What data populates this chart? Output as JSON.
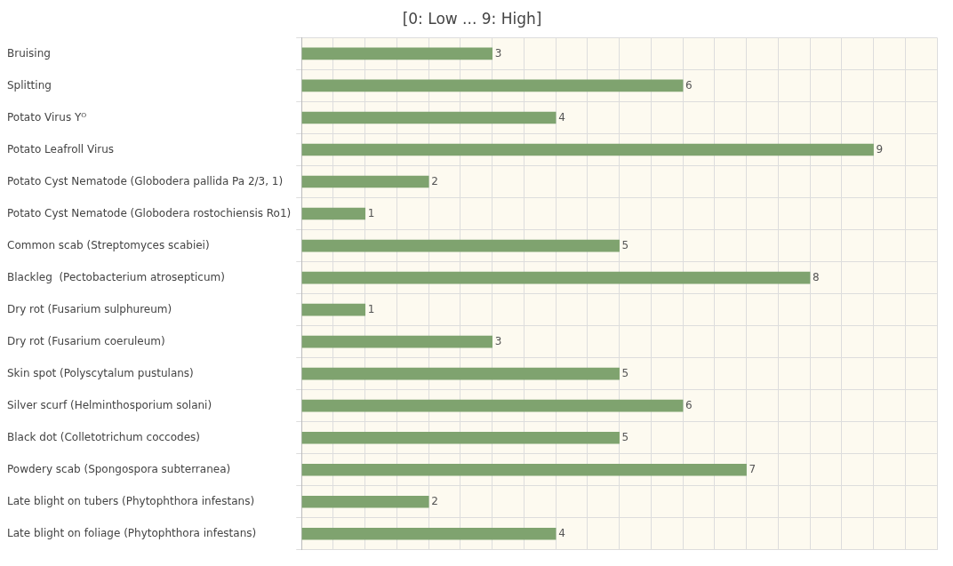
{
  "chart_data": {
    "type": "bar",
    "orientation": "horizontal",
    "title": "[0: Low ... 9: High]",
    "categories": [
      "Bruising",
      "Splitting",
      "Potato Virus Yᴼ",
      "Potato Leafroll Virus",
      "Potato Cyst Nematode (Globodera pallida Pa 2/3, 1)",
      "Potato Cyst Nematode (Globodera rostochiensis Ro1)",
      "Common scab (Streptomyces scabiei)",
      "Blackleg  (Pectobacterium atrosepticum)",
      "Dry rot (Fusarium sulphureum)",
      "Dry rot (Fusarium coeruleum)",
      "Skin spot (Polyscytalum pustulans)",
      "Silver scurf (Helminthosporium solani)",
      "Black dot (Colletotrichum coccodes)",
      "Powdery scab (Spongospora subterranea)",
      "Late blight on tubers (Phytophthora infestans)",
      "Late blight on foliage (Phytophthora infestans)"
    ],
    "values": [
      3,
      6,
      4,
      9,
      2,
      1,
      5,
      8,
      1,
      3,
      5,
      6,
      5,
      7,
      2,
      4
    ],
    "color": "#7fa36f",
    "xlim": [
      0,
      10
    ],
    "xticks": [
      {
        "value": 0,
        "label": null
      },
      {
        "value": 0.5,
        "label": null
      },
      {
        "value": 1,
        "label": null
      },
      {
        "value": 1.5,
        "label": null
      },
      {
        "value": 2,
        "label": null
      },
      {
        "value": 2.5,
        "label": null
      },
      {
        "value": 3,
        "label": null
      },
      {
        "value": 3.5,
        "label": null
      },
      {
        "value": 4,
        "label": null
      },
      {
        "value": 4.5,
        "label": null
      },
      {
        "value": 5,
        "label": null
      },
      {
        "value": 5.5,
        "label": null
      },
      {
        "value": 6,
        "label": null
      },
      {
        "value": 6.5,
        "label": null
      },
      {
        "value": 7,
        "label": null
      },
      {
        "value": 7.5,
        "label": null
      },
      {
        "value": 8,
        "label": null
      },
      {
        "value": 8.5,
        "label": null
      },
      {
        "value": 9,
        "label": null
      },
      {
        "value": 9.5,
        "label": null
      },
      {
        "value": 10,
        "label": null
      }
    ],
    "tick_labels": "y",
    "grid": true,
    "data_labels": true,
    "legend": false
  }
}
